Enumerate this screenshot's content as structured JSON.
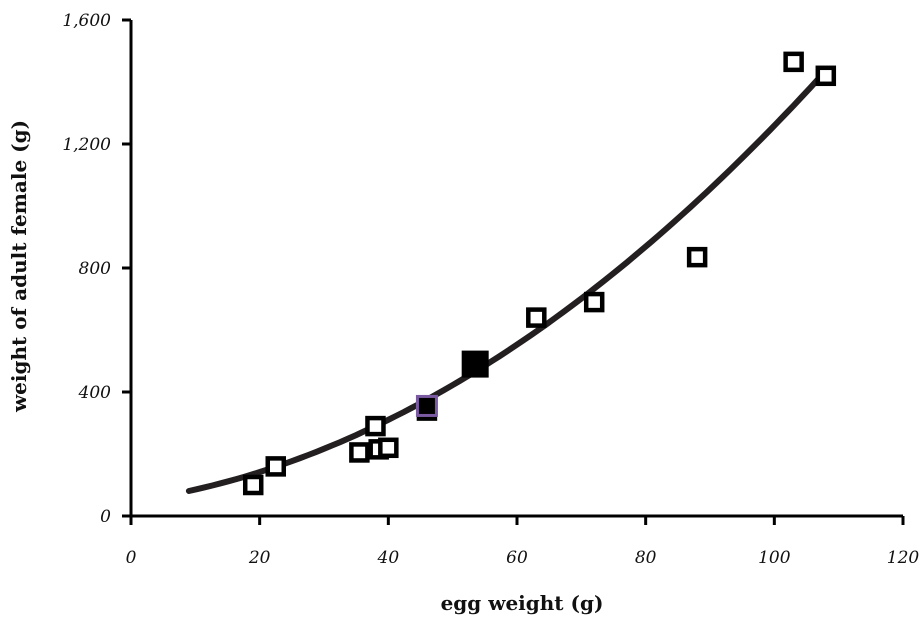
{
  "chart_data": {
    "type": "scatter",
    "xlabel": "egg weight (g)",
    "ylabel": "weight of adult female (g)",
    "xlim": [
      0,
      120
    ],
    "ylim": [
      0,
      1600
    ],
    "x_ticks": [
      0,
      20,
      40,
      60,
      80,
      100,
      120
    ],
    "x_tick_labels": [
      "0",
      "20",
      "40",
      "60",
      "80",
      "100",
      "120"
    ],
    "y_ticks": [
      0,
      400,
      800,
      1200,
      1600
    ],
    "y_tick_labels": [
      "0",
      "400",
      "800",
      "1,200",
      "1,600"
    ],
    "grid": false,
    "series": [
      {
        "marker": "open-square",
        "color": "#000000",
        "points": [
          {
            "x": 19,
            "y": 100
          },
          {
            "x": 22.5,
            "y": 160
          },
          {
            "x": 35.5,
            "y": 205
          },
          {
            "x": 38,
            "y": 290
          },
          {
            "x": 38.5,
            "y": 215
          },
          {
            "x": 40,
            "y": 220
          },
          {
            "x": 46,
            "y": 340
          },
          {
            "x": 63,
            "y": 640
          },
          {
            "x": 72,
            "y": 690
          },
          {
            "x": 88,
            "y": 835
          },
          {
            "x": 103,
            "y": 1465
          },
          {
            "x": 108,
            "y": 1420
          }
        ]
      },
      {
        "marker": "filled-square",
        "color": "#000000",
        "points": [
          {
            "x": 53.5,
            "y": 490
          }
        ]
      },
      {
        "marker": "filled-square-purple-outline",
        "color": "#000000",
        "outline": "#7a5aa0",
        "points": [
          {
            "x": 46,
            "y": 355
          }
        ]
      }
    ],
    "trend_line": {
      "type": "quadratic",
      "color": "#231f20",
      "x_range": [
        9,
        108
      ],
      "coefficients": {
        "a": 0.09244,
        "b": 2.876,
        "c": 47.3
      }
    }
  }
}
